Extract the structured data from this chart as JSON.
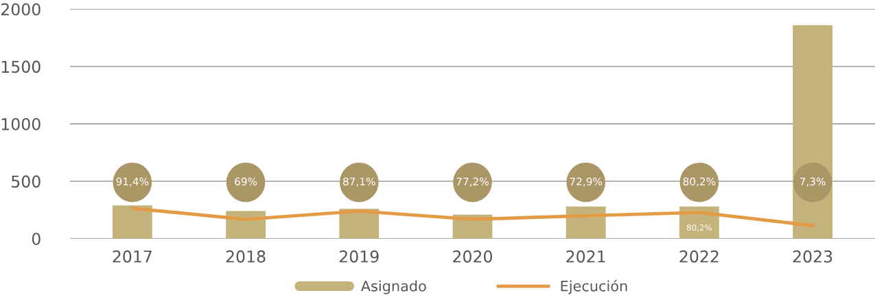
{
  "chart_data": {
    "type": "bar",
    "categories": [
      "2017",
      "2018",
      "2019",
      "2020",
      "2021",
      "2022",
      "2023"
    ],
    "series": [
      {
        "name": "Asignado",
        "color": "#c4b47c",
        "values": [
          290,
          240,
          260,
          210,
          280,
          280,
          1860
        ]
      },
      {
        "name": "Ejecución",
        "type": "line",
        "color": "#e39c45",
        "values": [
          264,
          168,
          240,
          168,
          200,
          228,
          114
        ]
      }
    ],
    "ylim": [
      0,
      2000
    ],
    "yticks": [
      0,
      500,
      1000,
      1500,
      2000
    ],
    "grid": "y",
    "legend": "bottom",
    "marker": "none",
    "line_style": "solid",
    "annotations": [
      "91,4%",
      "69%",
      "87,1%",
      "77,2%",
      "72,9%",
      "80,2%",
      "7,3%",
      "80,2%"
    ]
  }
}
